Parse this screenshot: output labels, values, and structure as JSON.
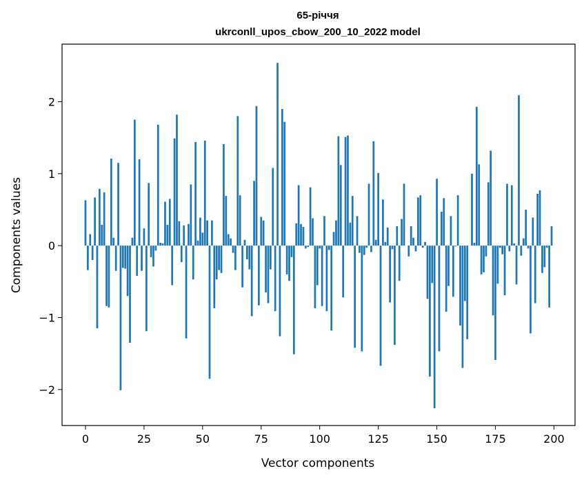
{
  "chart_data": {
    "type": "bar",
    "title": "65-річчя",
    "subtitle": "ukrconll_upos_cbow_200_10_2022 model",
    "xlabel": "Vector components",
    "ylabel": "Components values",
    "xlim": [
      -10,
      209
    ],
    "ylim": [
      -2.5,
      2.8
    ],
    "xticks": [
      0,
      25,
      50,
      75,
      100,
      125,
      150,
      175,
      200
    ],
    "yticks": [
      -2,
      -1,
      0,
      1,
      2
    ],
    "ytick_labels": [
      "−2",
      "−1",
      "0",
      "1",
      "2"
    ],
    "grid": false,
    "bar_color": "#1f77b4",
    "values": [
      0.63,
      -0.34,
      0.16,
      -0.2,
      0.67,
      -1.15,
      0.79,
      0.29,
      0.74,
      -0.84,
      -0.86,
      1.21,
      0.11,
      -0.35,
      1.15,
      -2.01,
      -0.31,
      -0.32,
      -0.7,
      -1.35,
      0.11,
      1.75,
      -0.42,
      1.2,
      -0.35,
      0.24,
      -1.19,
      0.87,
      -0.16,
      -0.29,
      -0.07,
      1.68,
      0.04,
      0.03,
      0.61,
      0.29,
      0.65,
      -0.55,
      1.49,
      1.82,
      0.34,
      -0.23,
      0.28,
      -1.29,
      0.3,
      0.85,
      -0.47,
      1.44,
      0.07,
      0.39,
      0.18,
      1.46,
      0.35,
      -1.85,
      0.35,
      -0.87,
      -0.47,
      -0.34,
      -0.38,
      1.41,
      0.69,
      0.16,
      0.1,
      -0.1,
      -0.34,
      1.8,
      0.7,
      -0.58,
      0.08,
      -0.19,
      -0.33,
      -0.98,
      0.9,
      1.94,
      -0.83,
      0.4,
      0.35,
      -0.65,
      -0.8,
      -0.33,
      1.08,
      -0.91,
      2.54,
      -1.26,
      1.9,
      1.72,
      -0.4,
      -0.49,
      -0.16,
      -1.51,
      0.31,
      0.84,
      0.3,
      0.26,
      -0.04,
      -0.02,
      0.81,
      0.38,
      -0.87,
      -0.55,
      -0.04,
      -0.84,
      0.41,
      -0.91,
      -0.06,
      -1.18,
      0.19,
      0.35,
      1.52,
      1.12,
      -0.72,
      1.51,
      1.53,
      0.32,
      0.69,
      -1.42,
      0.41,
      -0.1,
      -1.47,
      -0.13,
      -0.03,
      0.86,
      -0.09,
      1.45,
      0.08,
      1.01,
      -1.67,
      0.64,
      0.05,
      0.25,
      -0.79,
      -0.05,
      -1.38,
      0.27,
      -0.49,
      0.37,
      0.86,
      0.0,
      -0.15,
      0.27,
      0.11,
      -0.08,
      0.67,
      0.7,
      -0.03,
      0.05,
      -0.74,
      -1.82,
      -0.52,
      -2.26,
      0.93,
      -1.47,
      0.47,
      0.66,
      -0.92,
      -0.56,
      0.41,
      -0.71,
      -0.01,
      0.7,
      -1.11,
      -1.7,
      -0.77,
      -1.3,
      0.0,
      1.0,
      0.04,
      1.93,
      1.13,
      -0.4,
      -0.37,
      -0.15,
      0.88,
      1.32,
      -0.97,
      -1.59,
      -0.53,
      -0.03,
      -0.12,
      -0.69,
      0.86,
      -0.08,
      0.84,
      0.03,
      -0.54,
      2.09,
      -0.14,
      0.1,
      0.5,
      -0.04,
      -1.22,
      0.39,
      -0.8,
      0.72,
      0.77,
      -0.38,
      -0.3,
      -0.03,
      -0.86,
      0.27
    ]
  }
}
